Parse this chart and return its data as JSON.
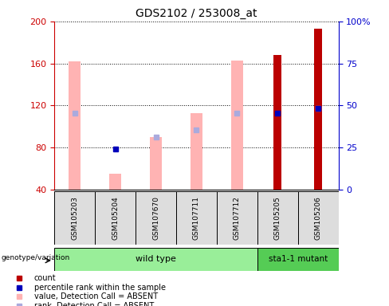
{
  "title": "GDS2102 / 253008_at",
  "samples": [
    "GSM105203",
    "GSM105204",
    "GSM107670",
    "GSM107711",
    "GSM107712",
    "GSM105205",
    "GSM105206"
  ],
  "ylim_left": [
    40,
    200
  ],
  "ylim_right": [
    0,
    100
  ],
  "yticks_left": [
    40,
    80,
    120,
    160,
    200
  ],
  "yticks_right": [
    0,
    25,
    50,
    75,
    100
  ],
  "ytick_labels_right": [
    "0",
    "25",
    "50",
    "75",
    "100%"
  ],
  "pink_bar_heights": [
    162,
    55,
    90,
    113,
    163,
    null,
    null
  ],
  "light_blue_marker_y": [
    113,
    null,
    90,
    97,
    113,
    null,
    117
  ],
  "dark_red_bar_heights": [
    null,
    null,
    null,
    null,
    null,
    168,
    193
  ],
  "blue_square_y": [
    null,
    79,
    null,
    null,
    null,
    113,
    117
  ],
  "pink_bar_color": "#FFB3B3",
  "light_blue_color": "#AAAADD",
  "dark_red_color": "#BB0000",
  "blue_square_color": "#0000BB",
  "group_wild_type_color": "#99EE99",
  "group_mutant_color": "#55CC55",
  "group_label_wild": "wild type",
  "group_label_mutant": "sta1-1 mutant",
  "genotype_label": "genotype/variation",
  "legend_items": [
    "count",
    "percentile rank within the sample",
    "value, Detection Call = ABSENT",
    "rank, Detection Call = ABSENT"
  ],
  "axis_color_left": "#CC0000",
  "axis_color_right": "#0000CC",
  "bar_width": 0.3,
  "sample_box_color": "#DDDDDD",
  "plot_bg": "#FFFFFF"
}
